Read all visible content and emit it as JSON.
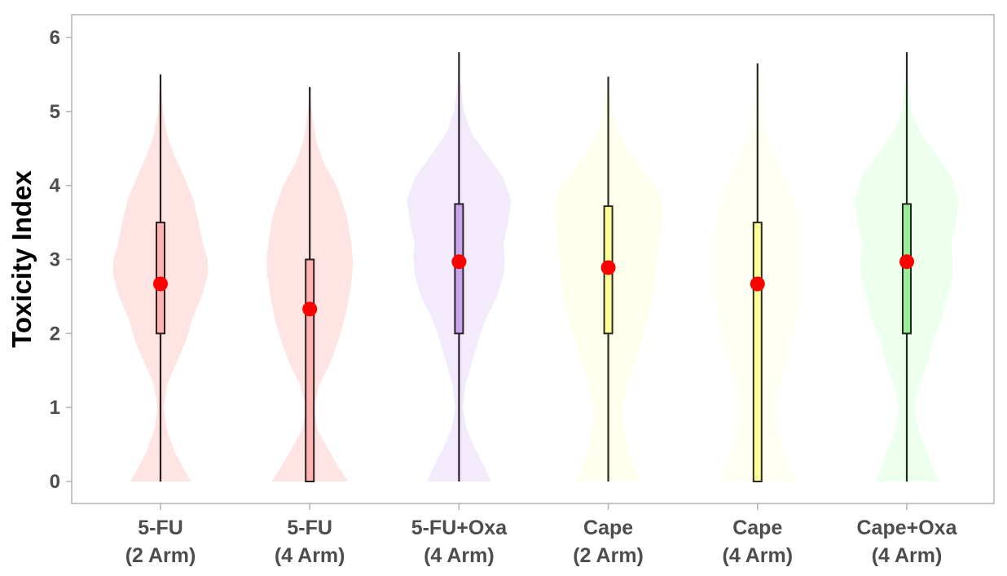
{
  "chart_data": {
    "type": "violin",
    "title": "",
    "xlabel": "",
    "ylabel": "Toxicity Index",
    "ylim": [
      -0.3,
      6.3
    ],
    "yticks": [
      0,
      1,
      2,
      3,
      4,
      5,
      6
    ],
    "grid": false,
    "legend": "none",
    "mean_marker_color": "#ff0000",
    "categories": [
      {
        "line1": "5-FU",
        "line2": "(2 Arm)",
        "fill": "#ffb3b3",
        "box_fill": "#ffb3b3",
        "line_color": "#2a1f1f",
        "min": 0,
        "q1": 2.0,
        "median": 2.0,
        "q3": 3.5,
        "max": 5.5,
        "mean": 2.67,
        "density": [
          [
            0,
            0.48
          ],
          [
            0.15,
            0.38
          ],
          [
            0.4,
            0.22
          ],
          [
            0.7,
            0.1
          ],
          [
            1.0,
            0.05
          ],
          [
            1.3,
            0.1
          ],
          [
            1.6,
            0.25
          ],
          [
            1.9,
            0.4
          ],
          [
            2.2,
            0.5
          ],
          [
            2.5,
            0.65
          ],
          [
            2.8,
            0.75
          ],
          [
            3.0,
            0.74
          ],
          [
            3.2,
            0.67
          ],
          [
            3.5,
            0.6
          ],
          [
            3.8,
            0.52
          ],
          [
            4.1,
            0.38
          ],
          [
            4.4,
            0.22
          ],
          [
            4.7,
            0.1
          ],
          [
            5.0,
            0.04
          ],
          [
            5.5,
            0
          ]
        ]
      },
      {
        "line1": "5-FU",
        "line2": "(4 Arm)",
        "fill": "#ffb3b3",
        "box_fill": "#ffb3b3",
        "line_color": "#2a1f1f",
        "min": 0,
        "q1": 0,
        "median": 2.33,
        "q3": 3.0,
        "max": 5.33,
        "mean": 2.33,
        "density": [
          [
            0,
            0.6
          ],
          [
            0.2,
            0.45
          ],
          [
            0.45,
            0.28
          ],
          [
            0.7,
            0.12
          ],
          [
            1.0,
            0.06
          ],
          [
            1.3,
            0.15
          ],
          [
            1.6,
            0.32
          ],
          [
            1.9,
            0.45
          ],
          [
            2.2,
            0.55
          ],
          [
            2.5,
            0.62
          ],
          [
            2.8,
            0.67
          ],
          [
            3.0,
            0.68
          ],
          [
            3.3,
            0.64
          ],
          [
            3.6,
            0.58
          ],
          [
            4.0,
            0.42
          ],
          [
            4.3,
            0.22
          ],
          [
            4.6,
            0.1
          ],
          [
            5.0,
            0.03
          ],
          [
            5.33,
            0
          ]
        ]
      },
      {
        "line1": "5-FU+Oxa",
        "line2": "(4 Arm)",
        "fill": "#dcc4f5",
        "box_fill": "#c9a5ea",
        "line_color": "#2a1f2a",
        "min": 0,
        "q1": 2.0,
        "median": 3.0,
        "q3": 3.75,
        "max": 5.8,
        "mean": 2.97,
        "density": [
          [
            0,
            0.5
          ],
          [
            0.2,
            0.4
          ],
          [
            0.45,
            0.25
          ],
          [
            0.7,
            0.12
          ],
          [
            1.0,
            0.06
          ],
          [
            1.3,
            0.1
          ],
          [
            1.6,
            0.2
          ],
          [
            1.9,
            0.3
          ],
          [
            2.2,
            0.42
          ],
          [
            2.5,
            0.6
          ],
          [
            2.8,
            0.7
          ],
          [
            3.0,
            0.72
          ],
          [
            3.2,
            0.7
          ],
          [
            3.5,
            0.77
          ],
          [
            3.8,
            0.82
          ],
          [
            4.1,
            0.7
          ],
          [
            4.4,
            0.45
          ],
          [
            4.7,
            0.2
          ],
          [
            5.0,
            0.08
          ],
          [
            5.4,
            0.02
          ],
          [
            5.8,
            0
          ]
        ]
      },
      {
        "line1": "Cape",
        "line2": "(2 Arm)",
        "fill": "#ffffcc",
        "box_fill": "#ffff99",
        "line_color": "#2a2a1f",
        "min": 0,
        "q1": 2.0,
        "median": 3.0,
        "q3": 3.72,
        "max": 5.47,
        "mean": 2.89,
        "density": [
          [
            0,
            0.5
          ],
          [
            0.15,
            0.42
          ],
          [
            0.4,
            0.32
          ],
          [
            0.7,
            0.25
          ],
          [
            1.0,
            0.22
          ],
          [
            1.3,
            0.3
          ],
          [
            1.6,
            0.42
          ],
          [
            1.9,
            0.52
          ],
          [
            2.2,
            0.62
          ],
          [
            2.5,
            0.7
          ],
          [
            2.8,
            0.75
          ],
          [
            3.0,
            0.77
          ],
          [
            3.3,
            0.8
          ],
          [
            3.6,
            0.85
          ],
          [
            3.9,
            0.82
          ],
          [
            4.2,
            0.55
          ],
          [
            4.5,
            0.28
          ],
          [
            4.8,
            0.12
          ],
          [
            5.1,
            0.05
          ],
          [
            5.47,
            0
          ]
        ]
      },
      {
        "line1": "Cape",
        "line2": "(4 Arm)",
        "fill": "#ffffdd",
        "box_fill": "#ffff99",
        "line_color": "#2a2a1f",
        "min": 0,
        "q1": 0,
        "median": 3.0,
        "q3": 3.5,
        "max": 5.65,
        "mean": 2.67,
        "density": [
          [
            0,
            0.62
          ],
          [
            0.2,
            0.5
          ],
          [
            0.45,
            0.4
          ],
          [
            0.7,
            0.33
          ],
          [
            1.0,
            0.3
          ],
          [
            1.3,
            0.35
          ],
          [
            1.6,
            0.45
          ],
          [
            1.9,
            0.55
          ],
          [
            2.2,
            0.62
          ],
          [
            2.5,
            0.67
          ],
          [
            2.8,
            0.68
          ],
          [
            3.0,
            0.68
          ],
          [
            3.3,
            0.67
          ],
          [
            3.6,
            0.65
          ],
          [
            3.9,
            0.55
          ],
          [
            4.2,
            0.38
          ],
          [
            4.5,
            0.22
          ],
          [
            4.8,
            0.1
          ],
          [
            5.2,
            0.03
          ],
          [
            5.65,
            0
          ]
        ]
      },
      {
        "line1": "Cape+Oxa",
        "line2": "(4 Arm)",
        "fill": "#ccffcc",
        "box_fill": "#99ee99",
        "line_color": "#1f2a1f",
        "min": 0,
        "q1": 2.0,
        "median": 3.0,
        "q3": 3.75,
        "max": 5.8,
        "mean": 2.97,
        "density": [
          [
            0,
            0.5
          ],
          [
            0.2,
            0.4
          ],
          [
            0.45,
            0.3
          ],
          [
            0.7,
            0.18
          ],
          [
            1.0,
            0.12
          ],
          [
            1.3,
            0.2
          ],
          [
            1.6,
            0.32
          ],
          [
            1.9,
            0.42
          ],
          [
            2.2,
            0.55
          ],
          [
            2.5,
            0.65
          ],
          [
            2.8,
            0.72
          ],
          [
            3.0,
            0.72
          ],
          [
            3.2,
            0.7
          ],
          [
            3.5,
            0.77
          ],
          [
            3.8,
            0.82
          ],
          [
            4.1,
            0.72
          ],
          [
            4.4,
            0.48
          ],
          [
            4.7,
            0.22
          ],
          [
            5.0,
            0.08
          ],
          [
            5.4,
            0.02
          ],
          [
            5.8,
            0
          ]
        ]
      }
    ]
  }
}
